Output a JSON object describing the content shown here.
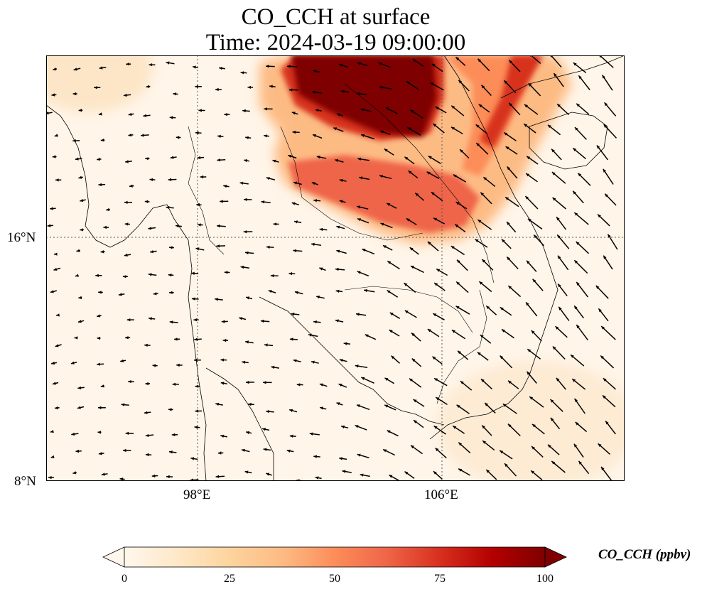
{
  "title_line1": "CO_CCH at surface",
  "title_line2": "Time: 2024-03-19 09:00:00",
  "map": {
    "variable": "CO_CCH",
    "level": "surface",
    "extent": {
      "lon": [
        93,
        112
      ],
      "lat": [
        8,
        22
      ]
    },
    "lon_ticks": [
      {
        "value": 98,
        "label": "98°E"
      },
      {
        "value": 106,
        "label": "106°E"
      }
    ],
    "lat_ticks": [
      {
        "value": 16,
        "label": "16°N"
      },
      {
        "value": 8,
        "label": "8°N"
      }
    ],
    "gridlines": true,
    "coastlines": true,
    "wind_vectors": true,
    "plume": {
      "description_colors": [
        "#7f0000",
        "#b30000",
        "#d7301f",
        "#ef6548",
        "#fc8d59"
      ]
    }
  },
  "colorbar": {
    "label": "CO_CCH (ppbv)",
    "min": 0,
    "max": 100,
    "ticks": [
      "0",
      "25",
      "50",
      "75",
      "100"
    ],
    "colormap": "OrRd",
    "extend": "both",
    "colors": [
      "#fff7ec",
      "#fee8c8",
      "#fdd49e",
      "#fdbb84",
      "#fc8d59",
      "#ef6548",
      "#d7301f",
      "#b30000",
      "#7f0000"
    ]
  }
}
